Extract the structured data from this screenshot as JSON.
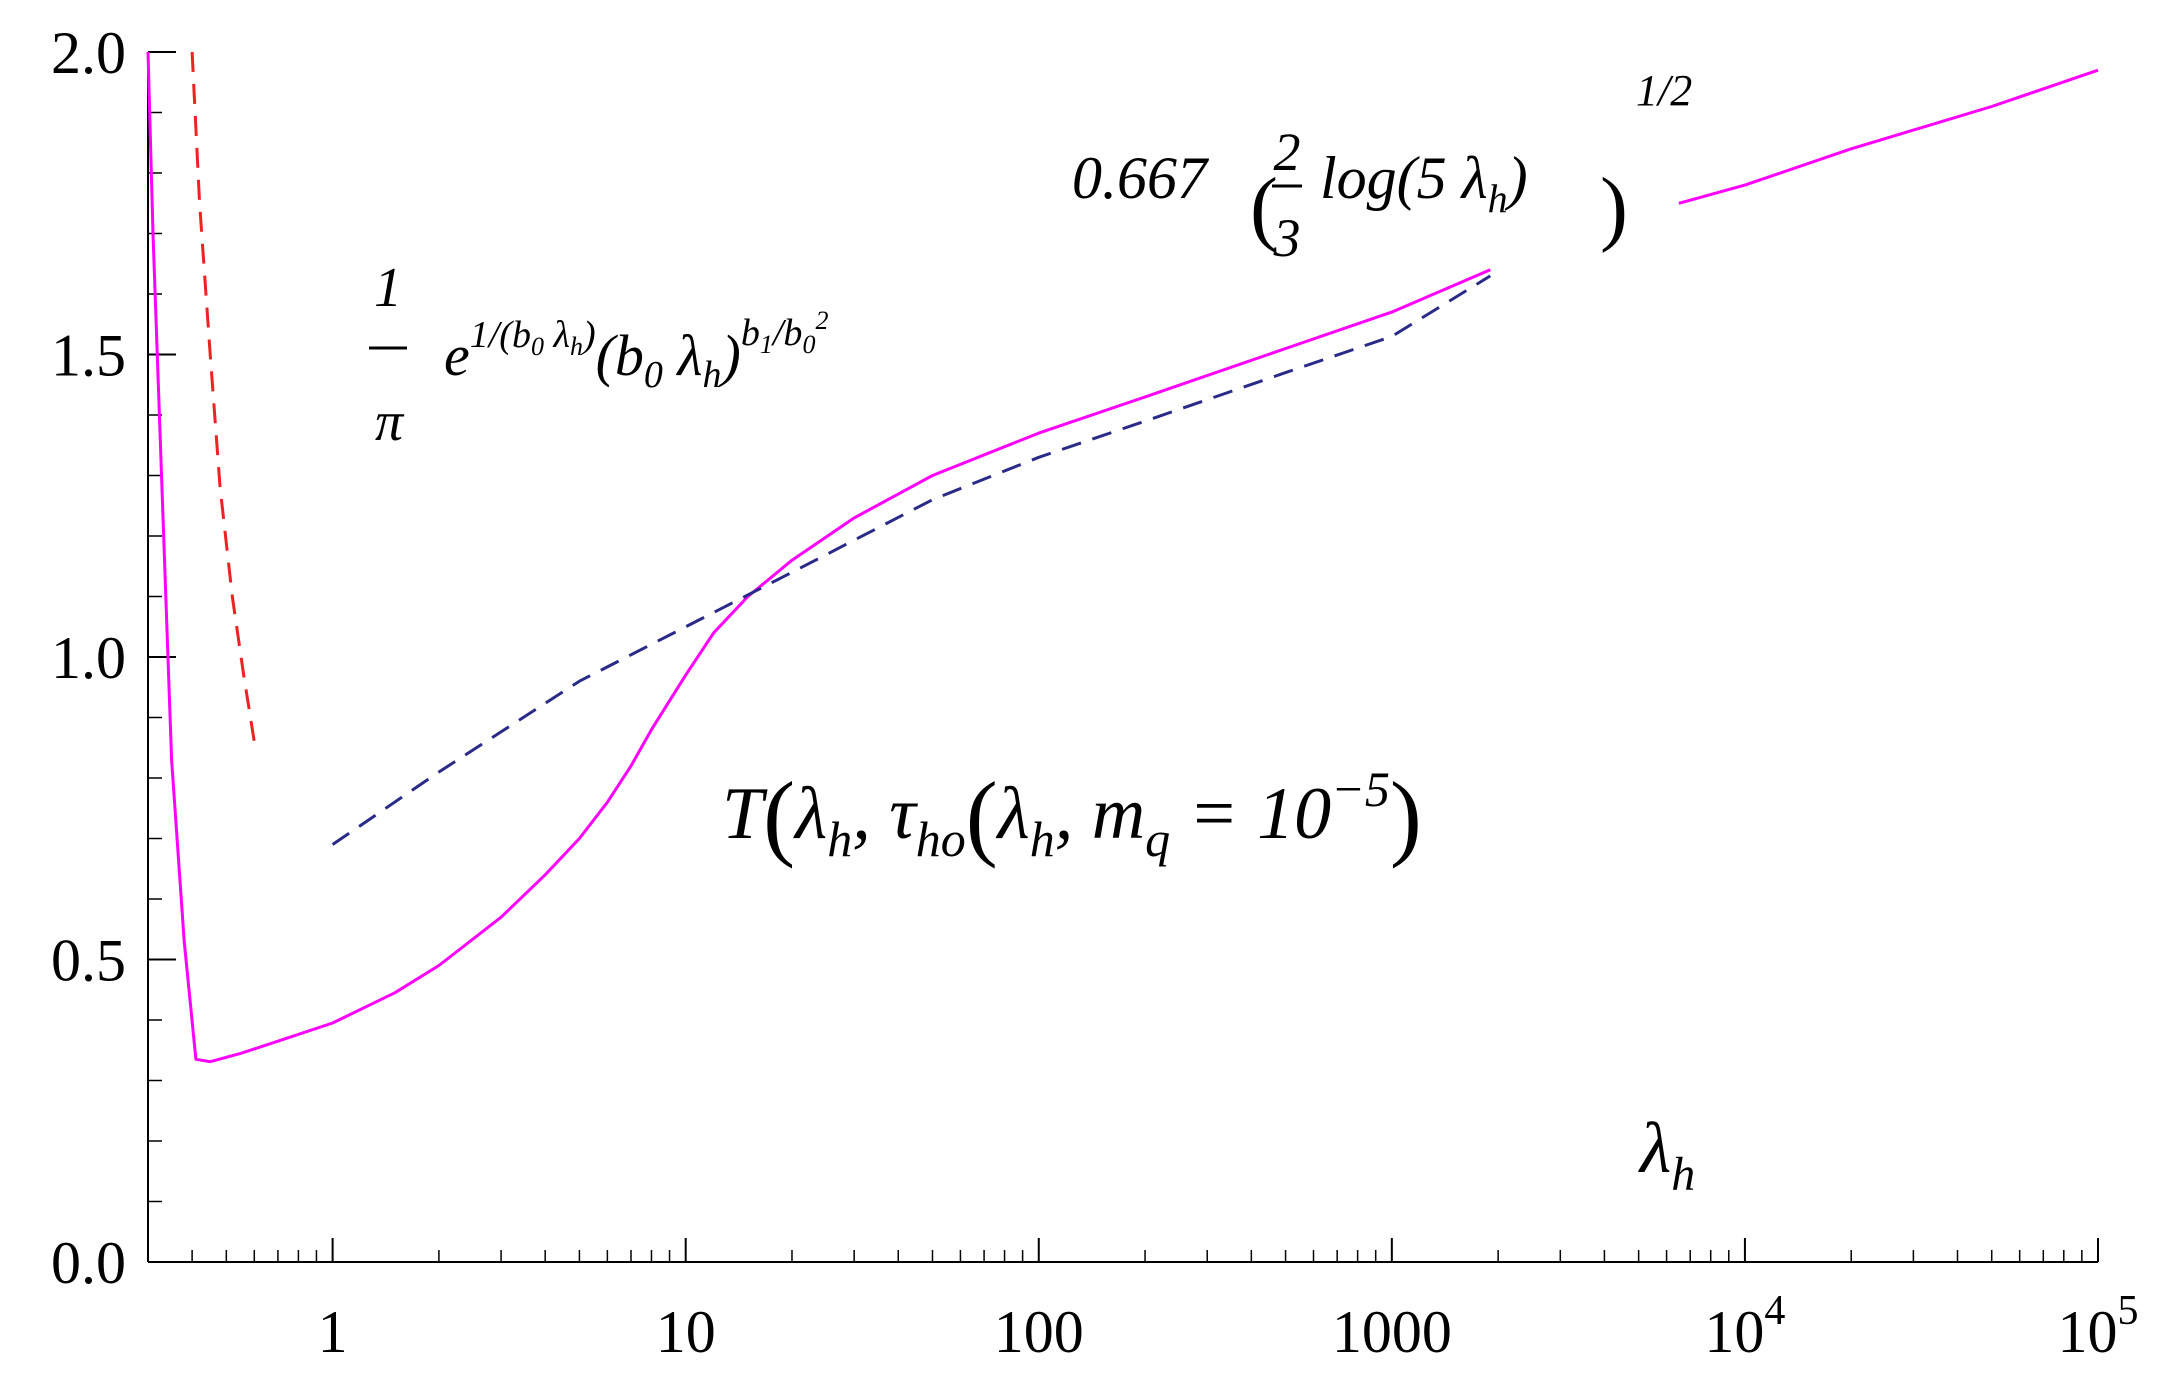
{
  "chart_data": {
    "type": "line",
    "xlabel": "λh",
    "xscale": "log",
    "xlim": [
      0.3,
      100000
    ],
    "ylim": [
      0,
      2.0
    ],
    "grid": false,
    "x_ticks": [
      {
        "value": 1,
        "base": "1",
        "sup": ""
      },
      {
        "value": 10,
        "base": "10",
        "sup": ""
      },
      {
        "value": 100,
        "base": "100",
        "sup": ""
      },
      {
        "value": 1000,
        "base": "1000",
        "sup": ""
      },
      {
        "value": 10000,
        "base": "10",
        "sup": "4"
      },
      {
        "value": 100000,
        "base": "10",
        "sup": "5"
      }
    ],
    "y_ticks": [
      {
        "value": 0.0,
        "label": "0.0"
      },
      {
        "value": 0.5,
        "label": "0.5"
      },
      {
        "value": 1.0,
        "label": "1.0"
      },
      {
        "value": 1.5,
        "label": "1.5"
      },
      {
        "value": 2.0,
        "label": "2.0"
      }
    ],
    "series": [
      {
        "color": "#ff00ff",
        "dash": "solid",
        "segments": [
          [
            [
              0.3,
              2.0
            ],
            [
              0.31,
              1.7
            ],
            [
              0.33,
              1.25
            ],
            [
              0.35,
              0.83
            ],
            [
              0.38,
              0.53
            ],
            [
              0.41,
              0.335
            ],
            [
              0.45,
              0.331
            ],
            [
              0.55,
              0.345
            ],
            [
              0.7,
              0.365
            ],
            [
              1.0,
              0.395
            ],
            [
              1.5,
              0.445
            ],
            [
              2.0,
              0.49
            ],
            [
              3.0,
              0.57
            ],
            [
              4.0,
              0.64
            ],
            [
              5.0,
              0.7
            ],
            [
              6.0,
              0.76
            ],
            [
              7.0,
              0.82
            ],
            [
              8.0,
              0.88
            ],
            [
              10.0,
              0.97
            ],
            [
              12.0,
              1.04
            ],
            [
              15.0,
              1.1
            ],
            [
              20.0,
              1.16
            ],
            [
              30.0,
              1.23
            ],
            [
              50.0,
              1.3
            ],
            [
              100.0,
              1.37
            ],
            [
              200.0,
              1.43
            ],
            [
              500.0,
              1.51
            ],
            [
              1000.0,
              1.57
            ],
            [
              1900.0,
              1.64
            ]
          ],
          [
            [
              6500.0,
              1.75
            ],
            [
              10000.0,
              1.78
            ],
            [
              20000.0,
              1.84
            ],
            [
              50000.0,
              1.91
            ],
            [
              100000.0,
              1.97
            ]
          ]
        ]
      },
      {
        "color": "#ee2222",
        "dash": "dashed",
        "segments": [
          [
            [
              0.4,
              2.0
            ],
            [
              0.42,
              1.75
            ],
            [
              0.45,
              1.5
            ],
            [
              0.48,
              1.28
            ],
            [
              0.52,
              1.1
            ],
            [
              0.56,
              0.97
            ],
            [
              0.6,
              0.86
            ]
          ]
        ]
      },
      {
        "color": "#2a2a88",
        "dash": "dashed",
        "segments": [
          [
            [
              1.0,
              0.69
            ],
            [
              2.0,
              0.81
            ],
            [
              5.0,
              0.96
            ],
            [
              10.0,
              1.05
            ],
            [
              20.0,
              1.14
            ],
            [
              50.0,
              1.26
            ],
            [
              100.0,
              1.33
            ],
            [
              200.0,
              1.39
            ],
            [
              500.0,
              1.47
            ],
            [
              1000.0,
              1.53
            ],
            [
              1900.0,
              1.63
            ]
          ]
        ]
      }
    ],
    "annotations": {
      "uv": {
        "coef": "0.667",
        "frac_num": "2",
        "frac_den": "3",
        "body": "log(5 λ",
        "sub": "h",
        "close": ")",
        "power": "1/2"
      },
      "ir": {
        "frac_num": "1",
        "frac_den": "π",
        "e": "e",
        "exp_main": "1/(b",
        "exp_sub0": "0",
        "exp_lambda": " λ",
        "exp_subh": "h",
        "exp_close": ")",
        "paren_open": "(b",
        "paren_sub0": "0",
        "paren_lambda": " λ",
        "paren_subh": "h",
        "paren_close": ")",
        "pow_b": "b",
        "pow_sub1": "1",
        "pow_slash": "/b",
        "pow_sub0": "0",
        "pow_sq": "2"
      },
      "curve": {
        "T": "T",
        "lambda1": "λ",
        "sub1": "h",
        "comma1": ", ",
        "tau": "τ",
        "tau_sub": "ho",
        "lambda2": "λ",
        "sub2": "h",
        "comma2": ", ",
        "m": "m",
        "m_sub": "q",
        "eq": " = 10",
        "exp": "−5"
      },
      "axis_label": {
        "base": "λ",
        "sub": "h"
      }
    }
  }
}
